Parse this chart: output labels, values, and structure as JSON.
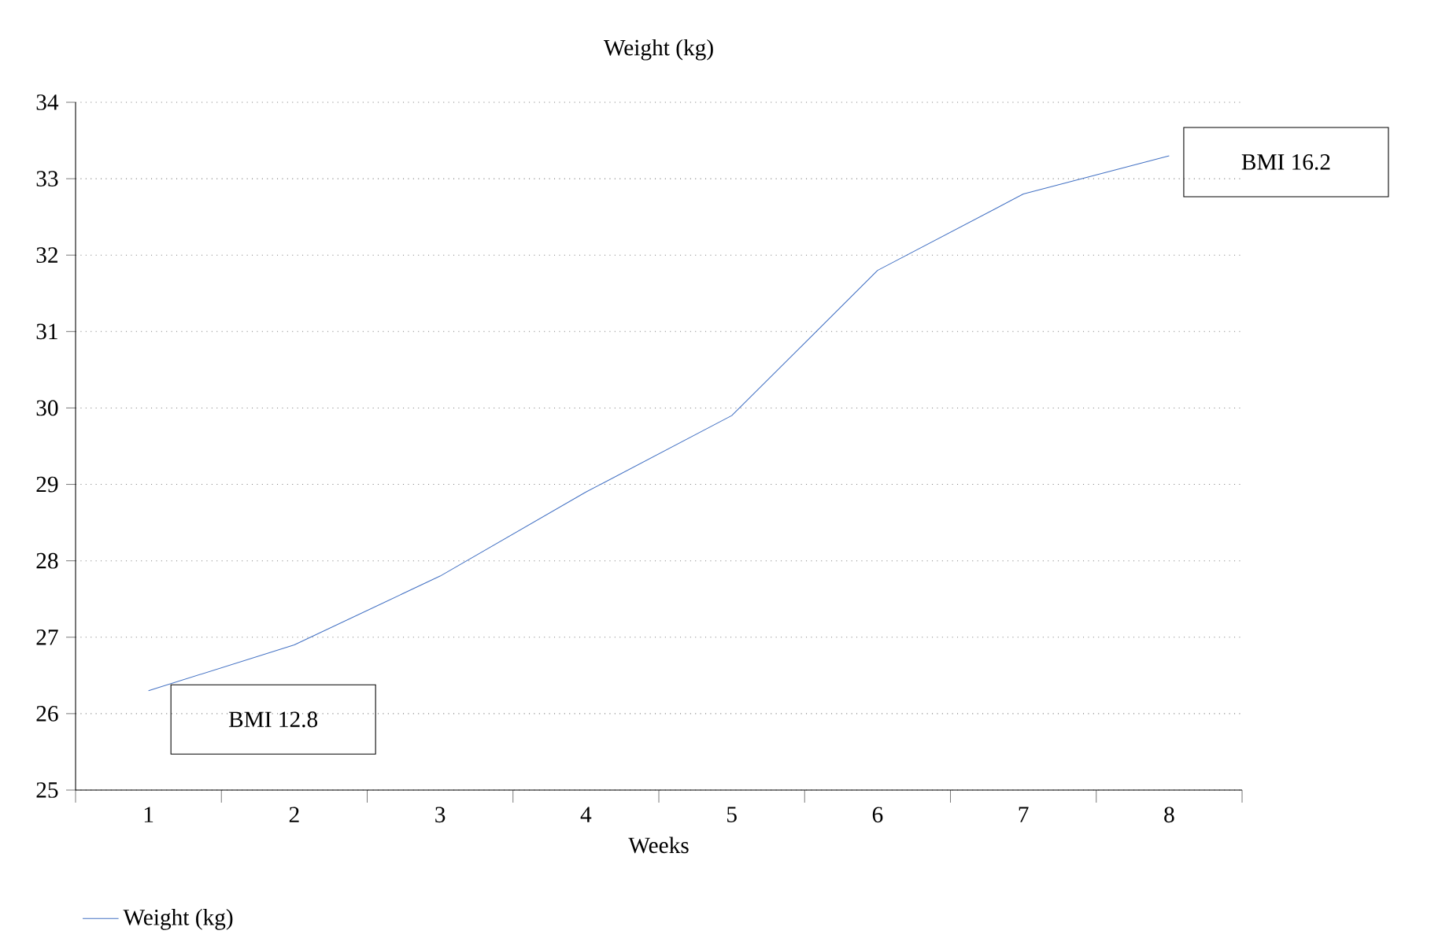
{
  "chart_data": {
    "type": "line",
    "title": "Weight (kg)",
    "xlabel": "Weeks",
    "categories": [
      "1",
      "2",
      "3",
      "4",
      "5",
      "6",
      "7",
      "8"
    ],
    "series": [
      {
        "name": "Weight (kg)",
        "color": "#4472c4",
        "values": [
          26.3,
          26.9,
          27.8,
          28.9,
          29.9,
          31.8,
          32.8,
          33.3
        ]
      }
    ],
    "ylim": [
      25,
      34
    ],
    "yticks": [
      25,
      26,
      27,
      28,
      29,
      30,
      31,
      32,
      33,
      34
    ],
    "grid": "y",
    "legend": "bottom left",
    "marker": "none",
    "line_style": "solid",
    "annotations": [
      "BMI 12.8",
      "BMI 16.2"
    ]
  }
}
